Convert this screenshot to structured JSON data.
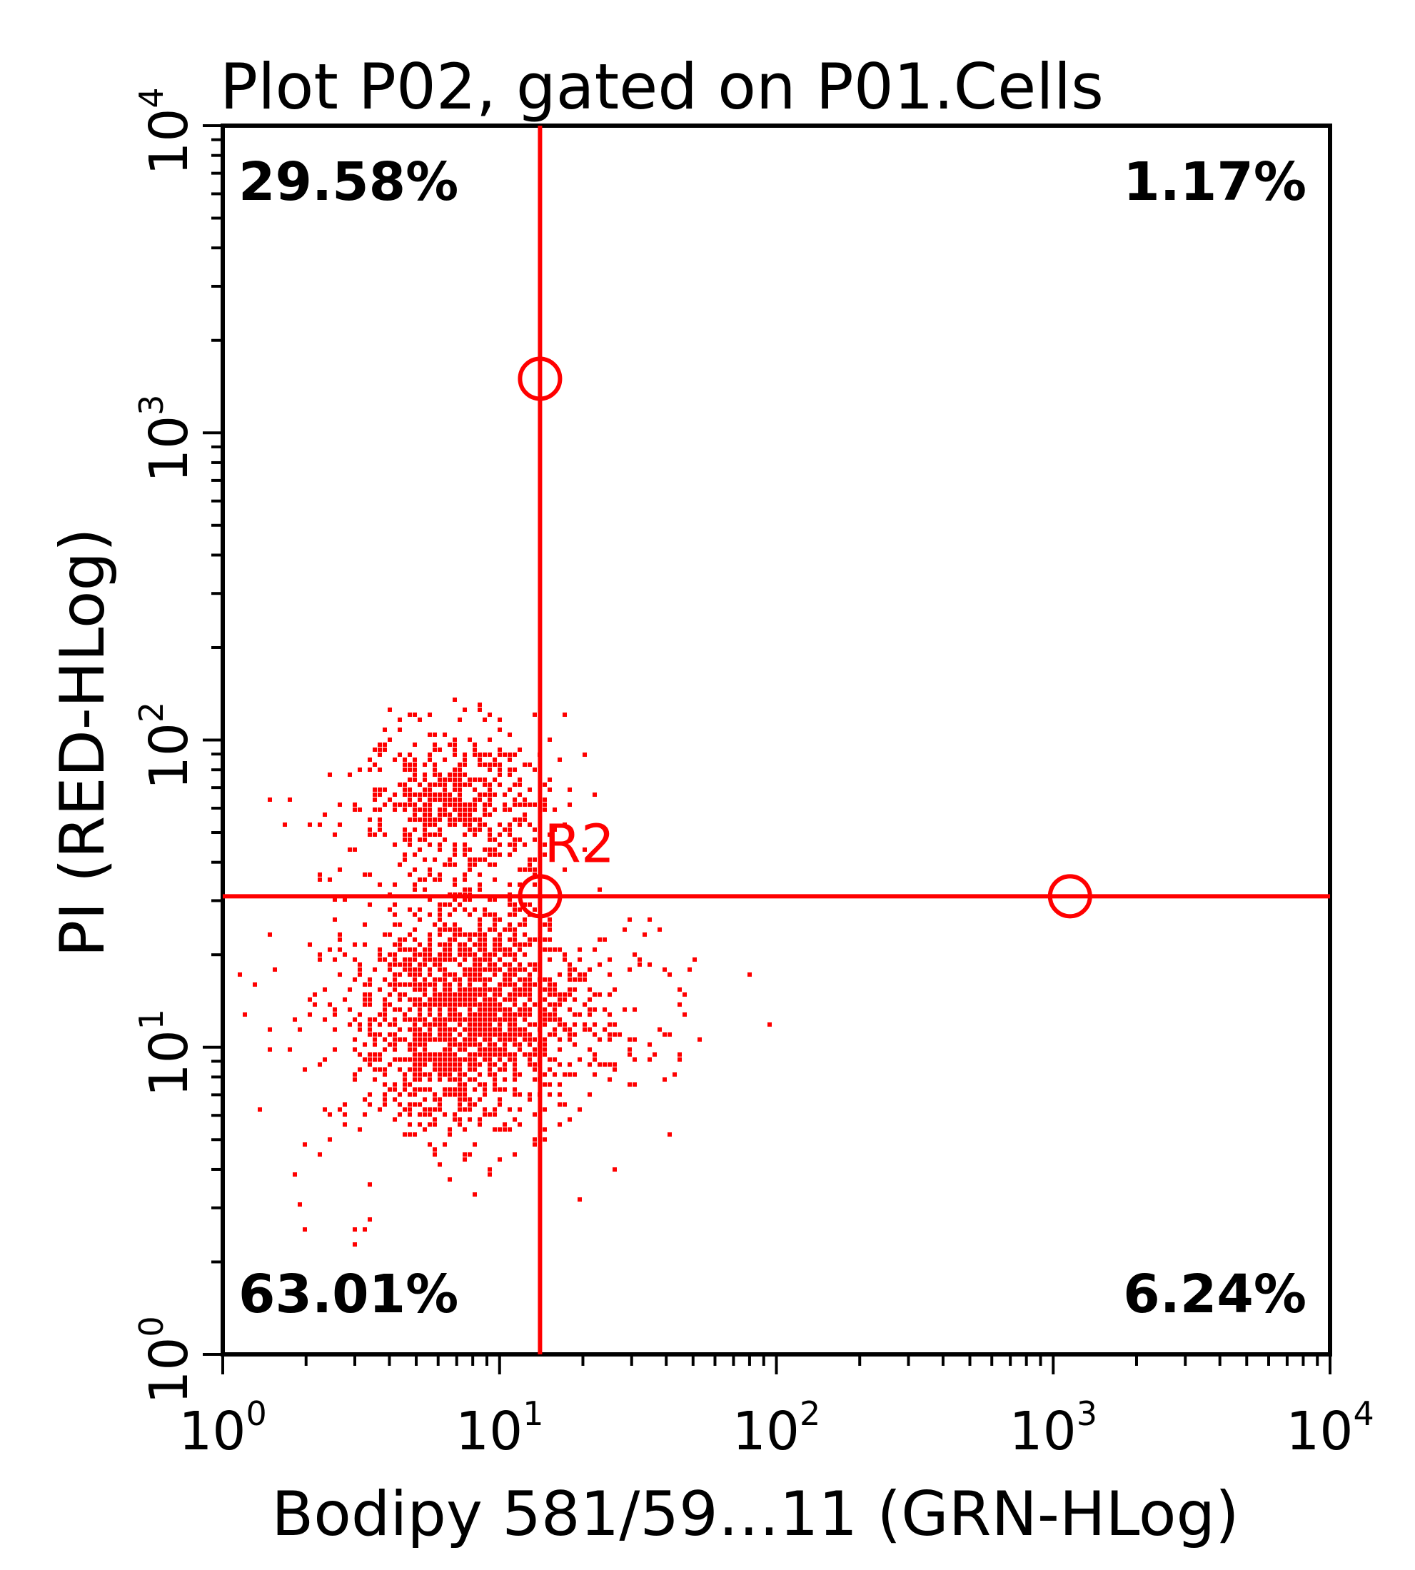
{
  "chart_data": {
    "type": "scatter",
    "title": "Plot P02, gated on P01.Cells",
    "xlabel": "Bodipy 581/59…11 (GRN-HLog)",
    "ylabel": "PI (RED-HLog)",
    "xscale": "log",
    "yscale": "log",
    "xlim": [
      1,
      10000
    ],
    "ylim": [
      1,
      10000
    ],
    "xticks": [
      {
        "base": "10",
        "exp": "0"
      },
      {
        "base": "10",
        "exp": "1"
      },
      {
        "base": "10",
        "exp": "2"
      },
      {
        "base": "10",
        "exp": "3"
      },
      {
        "base": "10",
        "exp": "4"
      }
    ],
    "yticks": [
      {
        "base": "10",
        "exp": "0"
      },
      {
        "base": "10",
        "exp": "1"
      },
      {
        "base": "10",
        "exp": "2"
      },
      {
        "base": "10",
        "exp": "3"
      },
      {
        "base": "10",
        "exp": "4"
      }
    ],
    "point_color": "#ff0000",
    "gate_color": "#ff0000",
    "quadrant_gate": {
      "label": "R2",
      "x": 14,
      "y": 31,
      "handles": [
        {
          "x": 14,
          "y": 1500
        },
        {
          "x": 14,
          "y": 31
        },
        {
          "x": 1150,
          "y": 31
        }
      ]
    },
    "quadrant_percentages": {
      "upper_left": "29.58%",
      "upper_right": "1.17%",
      "lower_left": "63.01%",
      "lower_right": "6.24%"
    },
    "clusters": [
      {
        "name": "",
        "center_x": 7.5,
        "center_y": 13,
        "spread_log_x": 0.19,
        "spread_log_y": 0.2,
        "count": 1500
      },
      {
        "name": "",
        "center_x": 7,
        "center_y": 62,
        "spread_log_x": 0.17,
        "spread_log_y": 0.13,
        "count": 520
      },
      {
        "name": "",
        "center_x": 2.5,
        "center_y": 13,
        "spread_log_x": 0.22,
        "spread_log_y": 0.35,
        "count": 60
      },
      {
        "name": "",
        "center_x": 25,
        "center_y": 13,
        "spread_log_x": 0.2,
        "spread_log_y": 0.15,
        "count": 120
      }
    ]
  }
}
